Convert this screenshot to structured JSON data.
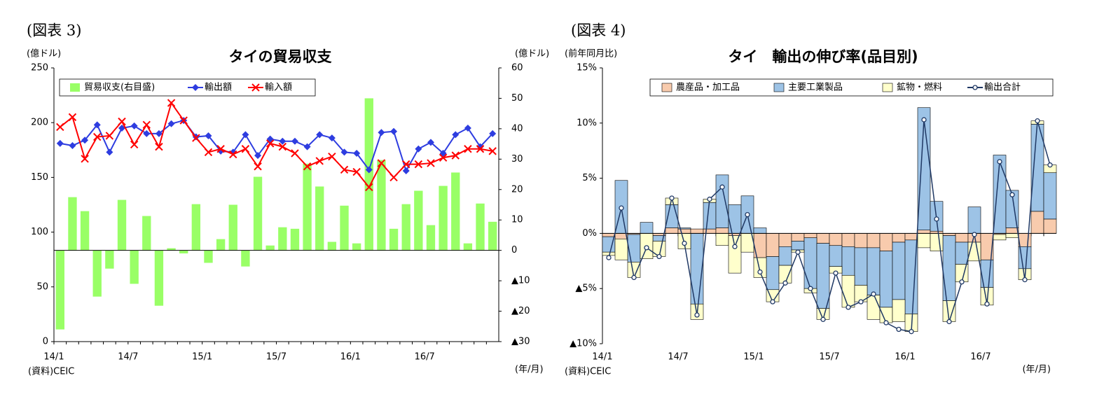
{
  "chart_data": [
    {
      "type": "combo",
      "figure_label": "(図表 3)",
      "title": "タイの貿易収支",
      "y_label": "(億ドル)",
      "y2_label": "(億ドル)",
      "x_label": "(年/月)",
      "source": "(資料)CEIC",
      "categories": [
        "14/1",
        null,
        null,
        null,
        null,
        null,
        "14/7",
        null,
        null,
        null,
        null,
        null,
        "15/1",
        null,
        null,
        null,
        null,
        null,
        "15/7",
        null,
        null,
        null,
        null,
        null,
        "16/1",
        null,
        null,
        null,
        null,
        null,
        "16/7",
        null,
        null,
        null,
        null,
        null
      ],
      "ylim": [
        0,
        250
      ],
      "yticks": [
        0,
        50,
        100,
        150,
        200,
        250
      ],
      "y2lim": [
        -30,
        60
      ],
      "y2ticks": [
        {
          "value": -30,
          "label": "▲30"
        },
        {
          "value": -20,
          "label": "▲20"
        },
        {
          "value": -10,
          "label": "▲10"
        },
        0,
        10,
        20,
        30,
        40,
        50,
        60
      ],
      "series": [
        {
          "name": "貿易収支(右目盛)",
          "type": "bar",
          "axis": "y2",
          "color": "#99ff66",
          "values": [
            -26,
            17.5,
            12.9,
            -15.2,
            -6,
            16.6,
            -11,
            11.3,
            -18.2,
            0.7,
            -1,
            15.2,
            -4.1,
            3.7,
            15,
            -5.3,
            24.2,
            1.6,
            7.6,
            7.1,
            28.5,
            21,
            2.8,
            14.7,
            2.3,
            50,
            29.7,
            7.1,
            15.2,
            19.6,
            8.3,
            21.2,
            25.6,
            2.3,
            15.4,
            9.4
          ]
        },
        {
          "name": "輸出額",
          "type": "line",
          "marker": "diamond",
          "color": "#2e3de0",
          "values": [
            181,
            179,
            184,
            198,
            173,
            195,
            197,
            190,
            190,
            199,
            202,
            187,
            188,
            174,
            173,
            189,
            170,
            185,
            183,
            183,
            178,
            189,
            186,
            173,
            172,
            157,
            191,
            192,
            156,
            176,
            182,
            172,
            189,
            195,
            178,
            190
          ]
        },
        {
          "name": "輸入額",
          "type": "line",
          "marker": "x",
          "color": "#ff0000",
          "values": [
            196,
            205,
            167,
            187,
            188,
            201,
            180,
            198,
            178,
            218,
            202,
            186,
            173,
            176,
            171,
            176,
            160,
            181,
            178,
            172,
            160,
            165,
            169,
            157,
            155,
            141,
            163,
            150,
            162,
            162,
            163,
            168,
            170,
            176,
            176,
            174
          ]
        }
      ]
    },
    {
      "type": "combo",
      "stacked": true,
      "figure_label": "(図表 4)",
      "title": "タイ　輸出の伸び率(品目別)",
      "y_label": "(前年同月比)",
      "x_label": "(年/月)",
      "source": "(資料)CEIC",
      "categories": [
        "14/1",
        null,
        null,
        null,
        null,
        null,
        "14/7",
        null,
        null,
        null,
        null,
        null,
        "15/1",
        null,
        null,
        null,
        null,
        null,
        "15/7",
        null,
        null,
        null,
        null,
        null,
        "16/1",
        null,
        null,
        null,
        null,
        null,
        "16/7",
        null,
        null,
        null,
        null,
        null
      ],
      "ylim": [
        -10,
        15
      ],
      "yticks": [
        {
          "value": -10,
          "label": "▲10%"
        },
        {
          "value": -5,
          "label": "▲5%"
        },
        {
          "value": 0,
          "label": "0%"
        },
        {
          "value": 5,
          "label": "5%"
        },
        {
          "value": 10,
          "label": "10%"
        },
        {
          "value": 15,
          "label": "15%"
        }
      ],
      "series": [
        {
          "name": "農産品・加工品",
          "type": "bar",
          "color": "#f8cbad",
          "values": [
            -0.3,
            -0.5,
            -0.1,
            0,
            -0.2,
            0.5,
            0.4,
            0.4,
            0.4,
            0.5,
            -0.2,
            0,
            -2.2,
            -2.1,
            -1.2,
            -0.7,
            -0.4,
            -0.9,
            -1.1,
            -1.2,
            -1.3,
            -1.3,
            -1.6,
            -0.8,
            -0.6,
            0.3,
            0.2,
            -0.2,
            -0.8,
            -0.8,
            -2.4,
            -0.1,
            0.5,
            -1.2,
            2.0,
            1.3
          ]
        },
        {
          "name": "主要工業製品",
          "type": "bar",
          "color": "#9dc3e6",
          "values": [
            -1.4,
            4.8,
            -2.5,
            1.0,
            -0.5,
            2.1,
            0.1,
            -6.4,
            2.4,
            4.8,
            2.6,
            3.4,
            0.5,
            -3.0,
            -1.7,
            -0.8,
            -4.6,
            -5.9,
            -1.9,
            -2.6,
            -3.4,
            -4.3,
            -5.1,
            -5.2,
            -6.7,
            11.1,
            2.7,
            -5.9,
            -2.0,
            2.4,
            -2.5,
            7.1,
            3.4,
            -2.0,
            7.9,
            4.2
          ]
        },
        {
          "name": "鉱物・燃料",
          "type": "bar",
          "color": "#ffffcc",
          "values": [
            -0.3,
            -1.9,
            -1.4,
            -2.3,
            -1.4,
            0.6,
            -1.4,
            -1.4,
            0.3,
            -1.1,
            -3.4,
            -1.7,
            -1.8,
            -1.1,
            -1.6,
            -0.2,
            -0.4,
            -1.0,
            -0.6,
            -2.9,
            -1.5,
            -2.2,
            -1.4,
            -2.0,
            -1.6,
            -1.3,
            -1.6,
            -1.9,
            -1.6,
            -1.7,
            -1.6,
            -0.5,
            -0.4,
            -1.0,
            0.3,
            0.7
          ]
        },
        {
          "name": "輸出合計",
          "type": "line",
          "marker": "circle",
          "color": "#1f3864",
          "values": [
            -2.2,
            2.3,
            -4.0,
            -1.3,
            -2.1,
            3.2,
            -0.9,
            -7.4,
            3.1,
            4.2,
            -1.2,
            1.7,
            -3.5,
            -6.2,
            -4.5,
            -1.7,
            -5.0,
            -7.8,
            -3.6,
            -6.7,
            -6.2,
            -5.5,
            -8.1,
            -8.7,
            -8.9,
            10.3,
            1.3,
            -8.0,
            -4.4,
            -0.1,
            -6.4,
            6.5,
            3.5,
            -4.2,
            10.2,
            6.2
          ]
        }
      ]
    }
  ]
}
